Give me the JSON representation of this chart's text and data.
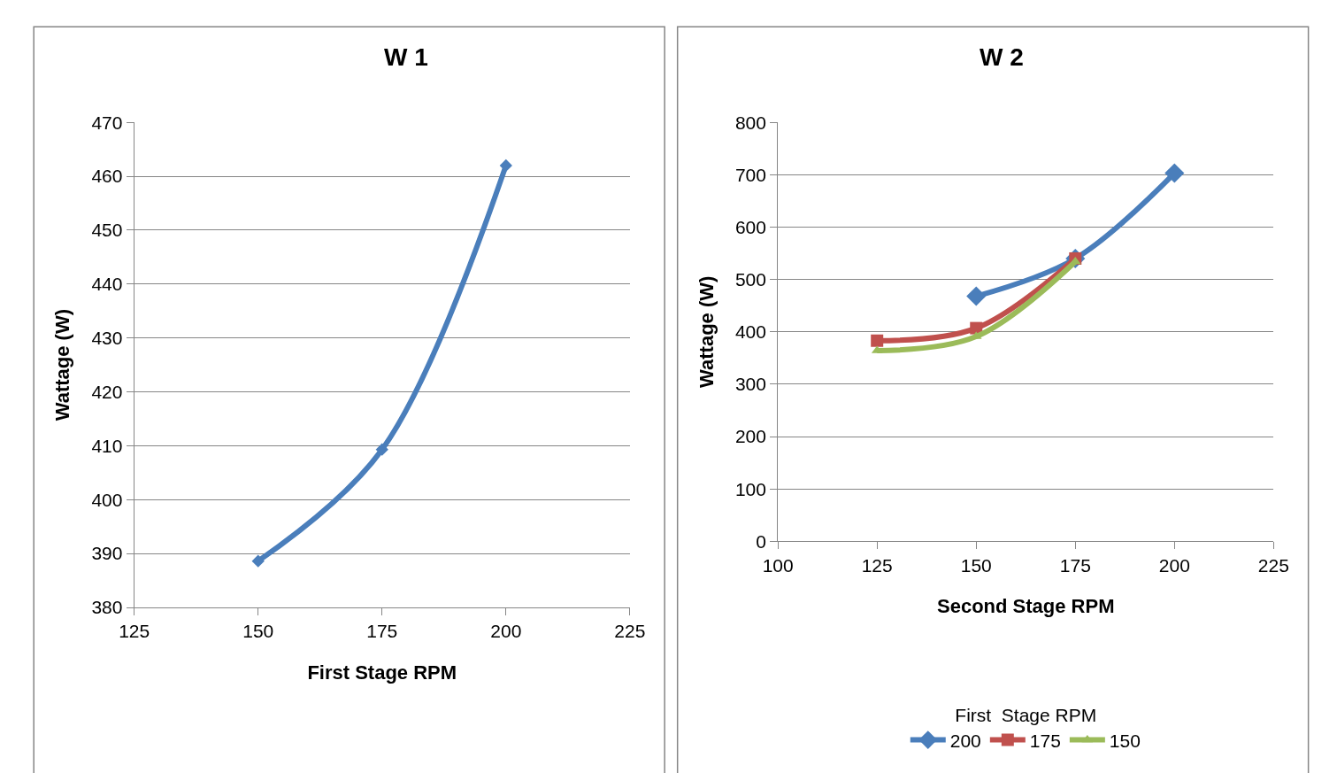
{
  "chart_data": [
    {
      "type": "line",
      "title": "W 1",
      "xlabel": "First Stage RPM",
      "ylabel": "Wattage (W)",
      "xlim": [
        125,
        225
      ],
      "xticks": [
        125,
        150,
        175,
        200,
        225
      ],
      "ylim": [
        380,
        470
      ],
      "yticks": [
        380,
        390,
        400,
        410,
        420,
        430,
        440,
        450,
        460,
        470
      ],
      "grid": "y",
      "legend": false,
      "series": [
        {
          "color": "#4a7ebb",
          "marker": "diamond",
          "x": [
            150,
            175,
            200
          ],
          "values": [
            388.6,
            409.3,
            462
          ]
        }
      ]
    },
    {
      "type": "line",
      "title": "W 2",
      "xlabel": "Second Stage RPM",
      "ylabel": "Wattage (W)",
      "legend_title": "First  Stage RPM",
      "xlim": [
        100,
        225
      ],
      "xticks": [
        100,
        125,
        150,
        175,
        200,
        225
      ],
      "ylim": [
        0,
        800
      ],
      "yticks": [
        0,
        100,
        200,
        300,
        400,
        500,
        600,
        700,
        800
      ],
      "grid": "y",
      "legend": "bottom",
      "series": [
        {
          "name": "200",
          "color": "#4a7ebb",
          "marker": "diamond",
          "x": [
            150,
            175,
            200
          ],
          "values": [
            468,
            540,
            703
          ]
        },
        {
          "name": "175",
          "color": "#c0504d",
          "marker": "square",
          "x": [
            125,
            150,
            175
          ],
          "values": [
            383,
            407,
            540
          ]
        },
        {
          "name": "150",
          "color": "#9bbb59",
          "marker": "triangle",
          "x": [
            125,
            150,
            175
          ],
          "values": [
            364,
            391,
            534
          ]
        }
      ]
    }
  ]
}
